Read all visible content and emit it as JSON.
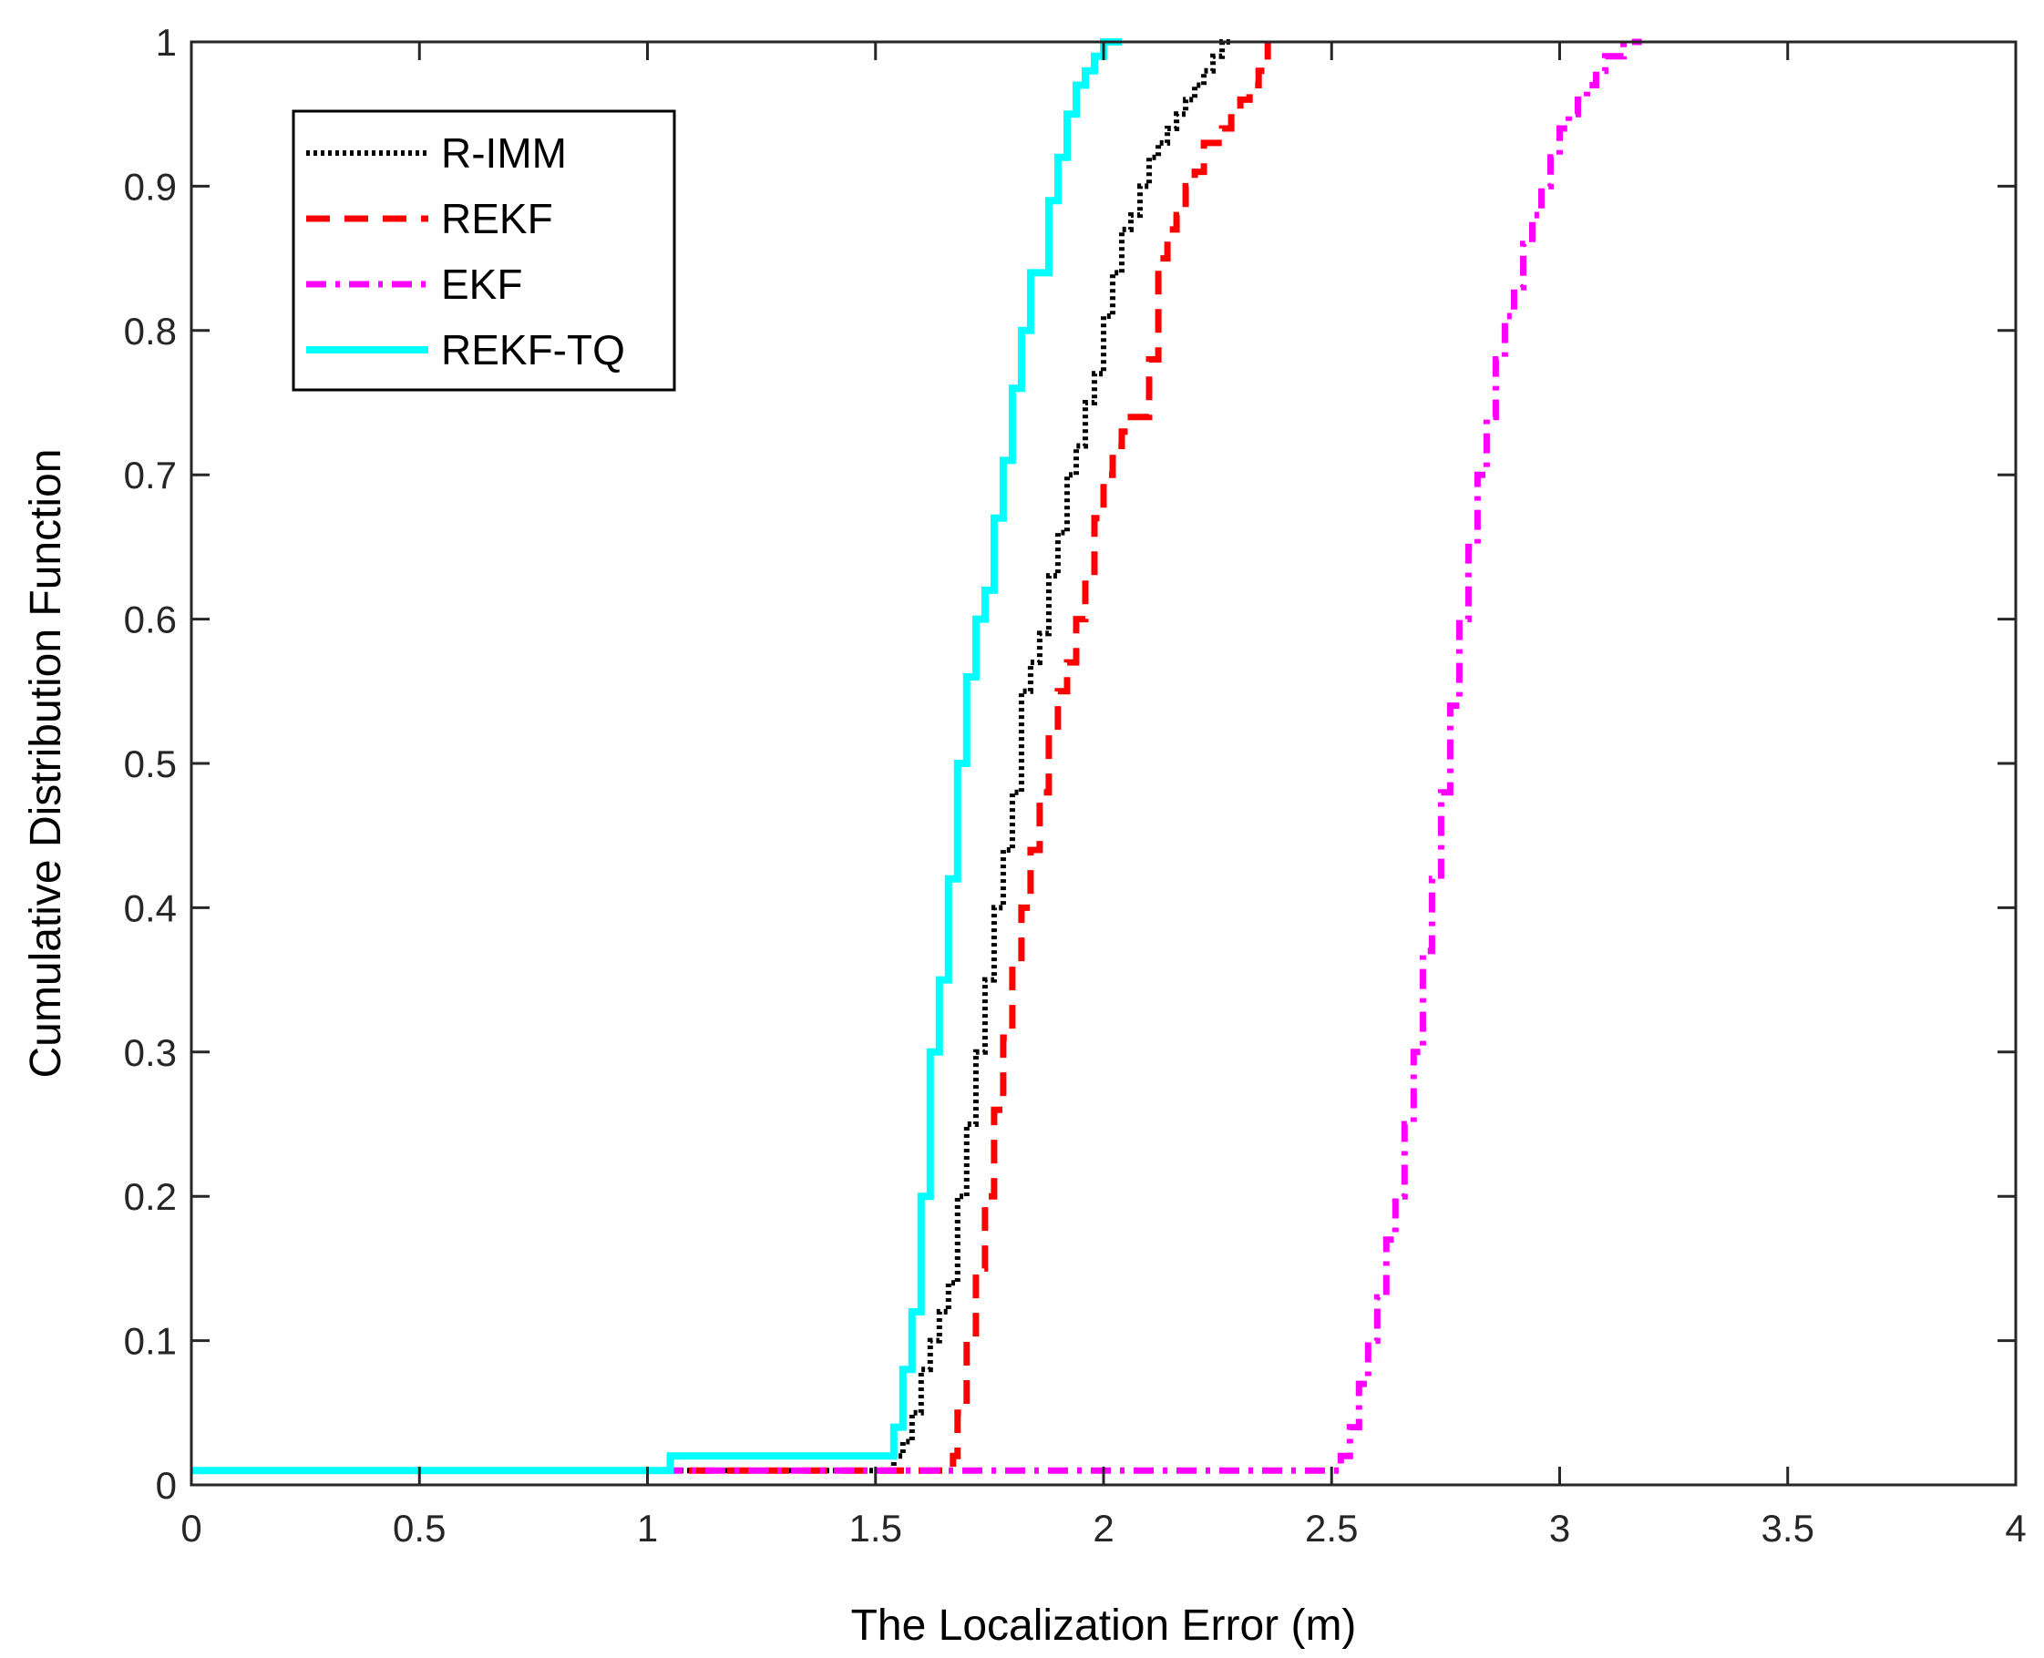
{
  "chart_data": {
    "type": "line",
    "xlabel": "The Localization Error (m)",
    "ylabel": "Cumulative Distribution Function",
    "xlim": [
      0,
      4
    ],
    "ylim": [
      0,
      1
    ],
    "xticks": [
      "0",
      "0.5",
      "1",
      "1.5",
      "2",
      "2.5",
      "3",
      "3.5",
      "4"
    ],
    "yticks": [
      "0",
      "0.1",
      "0.2",
      "0.3",
      "0.4",
      "0.5",
      "0.6",
      "0.7",
      "0.8",
      "0.9",
      "1"
    ],
    "legend_position": "top-left",
    "series": [
      {
        "name": "R-IMM",
        "color": "#000000",
        "style": "dotted",
        "x": [
          0,
          1.52,
          1.54,
          1.56,
          1.58,
          1.6,
          1.62,
          1.64,
          1.66,
          1.68,
          1.7,
          1.72,
          1.74,
          1.76,
          1.78,
          1.8,
          1.82,
          1.84,
          1.86,
          1.88,
          1.9,
          1.92,
          1.94,
          1.96,
          1.98,
          2.0,
          2.02,
          2.04,
          2.06,
          2.08,
          2.1,
          2.12,
          2.14,
          2.16,
          2.18,
          2.2,
          2.22,
          2.24,
          2.26,
          2.28
        ],
        "y": [
          0.01,
          0.01,
          0.02,
          0.03,
          0.05,
          0.08,
          0.1,
          0.12,
          0.14,
          0.2,
          0.25,
          0.3,
          0.35,
          0.4,
          0.44,
          0.48,
          0.55,
          0.57,
          0.59,
          0.63,
          0.66,
          0.7,
          0.72,
          0.75,
          0.77,
          0.81,
          0.84,
          0.87,
          0.88,
          0.9,
          0.92,
          0.93,
          0.94,
          0.95,
          0.96,
          0.97,
          0.98,
          0.99,
          1.0,
          1.0
        ]
      },
      {
        "name": "REKF",
        "color": "#ff0000",
        "style": "dashed",
        "x": [
          0,
          1.55,
          1.67,
          1.68,
          1.7,
          1.72,
          1.74,
          1.76,
          1.78,
          1.8,
          1.82,
          1.84,
          1.86,
          1.88,
          1.9,
          1.92,
          1.94,
          1.96,
          1.98,
          2.0,
          2.02,
          2.04,
          2.06,
          2.08,
          2.1,
          2.12,
          2.14,
          2.16,
          2.18,
          2.2,
          2.22,
          2.24,
          2.26,
          2.28,
          2.3,
          2.32,
          2.34,
          2.36
        ],
        "y": [
          0.01,
          0.01,
          0.02,
          0.05,
          0.1,
          0.15,
          0.2,
          0.26,
          0.31,
          0.36,
          0.4,
          0.44,
          0.48,
          0.52,
          0.55,
          0.57,
          0.6,
          0.63,
          0.67,
          0.7,
          0.72,
          0.73,
          0.74,
          0.74,
          0.78,
          0.85,
          0.87,
          0.88,
          0.9,
          0.91,
          0.93,
          0.93,
          0.94,
          0.95,
          0.96,
          0.97,
          0.98,
          1.0
        ]
      },
      {
        "name": "EKF",
        "color": "#ff00ff",
        "style": "dashdot",
        "x": [
          0,
          2.5,
          2.52,
          2.54,
          2.56,
          2.58,
          2.6,
          2.62,
          2.64,
          2.66,
          2.68,
          2.7,
          2.72,
          2.74,
          2.76,
          2.78,
          2.8,
          2.82,
          2.84,
          2.86,
          2.88,
          2.9,
          2.92,
          2.94,
          2.96,
          2.98,
          3.0,
          3.02,
          3.04,
          3.06,
          3.08,
          3.1,
          3.12,
          3.14,
          3.16,
          3.18
        ],
        "y": [
          0.01,
          0.01,
          0.02,
          0.04,
          0.07,
          0.1,
          0.13,
          0.17,
          0.2,
          0.25,
          0.3,
          0.37,
          0.42,
          0.48,
          0.54,
          0.6,
          0.65,
          0.7,
          0.74,
          0.78,
          0.81,
          0.83,
          0.86,
          0.88,
          0.9,
          0.92,
          0.94,
          0.95,
          0.96,
          0.97,
          0.98,
          0.99,
          0.99,
          1.0,
          1.0,
          1.0
        ]
      },
      {
        "name": "REKF-TQ",
        "color": "#00ffff",
        "style": "solid",
        "x": [
          0,
          1.04,
          1.05,
          1.53,
          1.54,
          1.56,
          1.58,
          1.6,
          1.62,
          1.64,
          1.66,
          1.68,
          1.7,
          1.72,
          1.74,
          1.76,
          1.78,
          1.8,
          1.82,
          1.84,
          1.86,
          1.88,
          1.9,
          1.92,
          1.94,
          1.96,
          1.98,
          2.0,
          2.02,
          2.04
        ],
        "y": [
          0.01,
          0.01,
          0.02,
          0.02,
          0.04,
          0.08,
          0.12,
          0.2,
          0.3,
          0.35,
          0.42,
          0.5,
          0.56,
          0.6,
          0.62,
          0.67,
          0.71,
          0.76,
          0.8,
          0.84,
          0.84,
          0.89,
          0.92,
          0.95,
          0.97,
          0.98,
          0.99,
          1.0,
          1.0,
          1.0
        ]
      }
    ]
  }
}
